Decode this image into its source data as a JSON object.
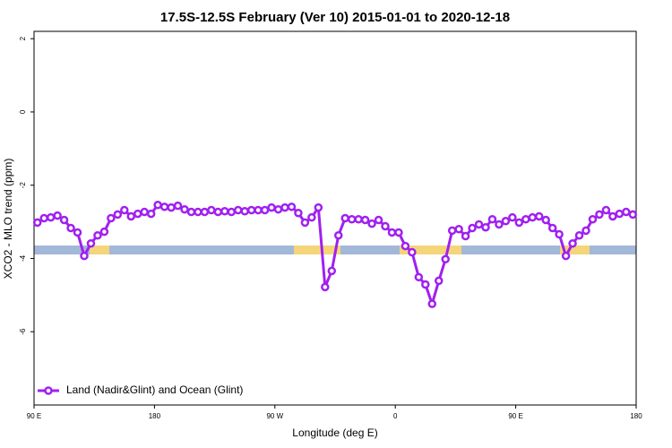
{
  "chart_data": {
    "type": "line",
    "title": "17.5S-12.5S February (Ver 10)   2015-01-01 to 2020-12-18",
    "x_label": "Longitude (deg E)",
    "y_label": "XCO2 - MLO trend (ppm)",
    "xlim": [
      90,
      540
    ],
    "ylim": [
      -8,
      2.2
    ],
    "xticks": [
      {
        "value": 90,
        "label": "90 E"
      },
      {
        "value": 180,
        "label": "180"
      },
      {
        "value": 270,
        "label": "90 W"
      },
      {
        "value": 360,
        "label": "0"
      },
      {
        "value": 450,
        "label": "90 E"
      },
      {
        "value": 540,
        "label": "180"
      }
    ],
    "yticks": [
      2,
      0,
      -2,
      -4,
      -6
    ],
    "legend_position": "bottom-left",
    "x": [
      92.5,
      97.5,
      102.5,
      107.5,
      112.5,
      117.5,
      122.5,
      127.5,
      132.5,
      137.5,
      142.5,
      147.5,
      152.5,
      157.5,
      162.5,
      167.5,
      172.5,
      177.5,
      182.5,
      187.5,
      192.5,
      197.5,
      202.5,
      207.5,
      212.5,
      217.5,
      222.5,
      227.5,
      232.5,
      237.5,
      242.5,
      247.5,
      252.5,
      257.5,
      262.5,
      267.5,
      272.5,
      277.5,
      282.5,
      287.5,
      292.5,
      297.5,
      302.5,
      307.5,
      312.5,
      317.5,
      322.5,
      327.5,
      332.5,
      337.5,
      342.5,
      347.5,
      352.5,
      357.5,
      362.5,
      367.5,
      372.5,
      377.5,
      382.5,
      387.5,
      392.5,
      397.5,
      402.5,
      407.5,
      412.5,
      417.5,
      422.5,
      427.5,
      432.5,
      437.5,
      442.5,
      447.5,
      452.5,
      457.5,
      462.5,
      467.5,
      472.5,
      477.5,
      482.5,
      487.5,
      492.5,
      497.5,
      502.5,
      507.5,
      512.5,
      517.5,
      522.5,
      527.5,
      532.5,
      537.5
    ],
    "series": [
      {
        "name": "Land (Nadir&Glint) and Ocean (Glint)",
        "color": "#a020f0",
        "values": [
          -3.02,
          -2.9,
          -2.88,
          -2.83,
          -2.95,
          -3.17,
          -3.29,
          -3.93,
          -3.59,
          -3.37,
          -3.27,
          -2.9,
          -2.8,
          -2.68,
          -2.85,
          -2.78,
          -2.73,
          -2.78,
          -2.54,
          -2.59,
          -2.61,
          -2.56,
          -2.66,
          -2.73,
          -2.73,
          -2.73,
          -2.68,
          -2.73,
          -2.71,
          -2.73,
          -2.68,
          -2.71,
          -2.68,
          -2.68,
          -2.68,
          -2.61,
          -2.66,
          -2.61,
          -2.59,
          -2.76,
          -3.02,
          -2.88,
          -2.61,
          -4.78,
          -4.34,
          -3.37,
          -2.9,
          -2.93,
          -2.93,
          -2.95,
          -3.05,
          -2.95,
          -3.12,
          -3.29,
          -3.29,
          -3.66,
          -3.83,
          -4.51,
          -4.71,
          -5.24,
          -4.61,
          -4.02,
          -3.24,
          -3.2,
          -3.39,
          -3.17,
          -3.07,
          -3.15,
          -2.93,
          -3.07,
          -2.98,
          -2.88,
          -3.02,
          -2.93,
          -2.88,
          -2.85,
          -2.95,
          -3.17,
          -3.34,
          -3.93,
          -3.59,
          -3.37,
          -3.24,
          -2.93,
          -2.8,
          -2.68,
          -2.85,
          -2.78,
          -2.73,
          -2.8
        ]
      }
    ]
  }
}
